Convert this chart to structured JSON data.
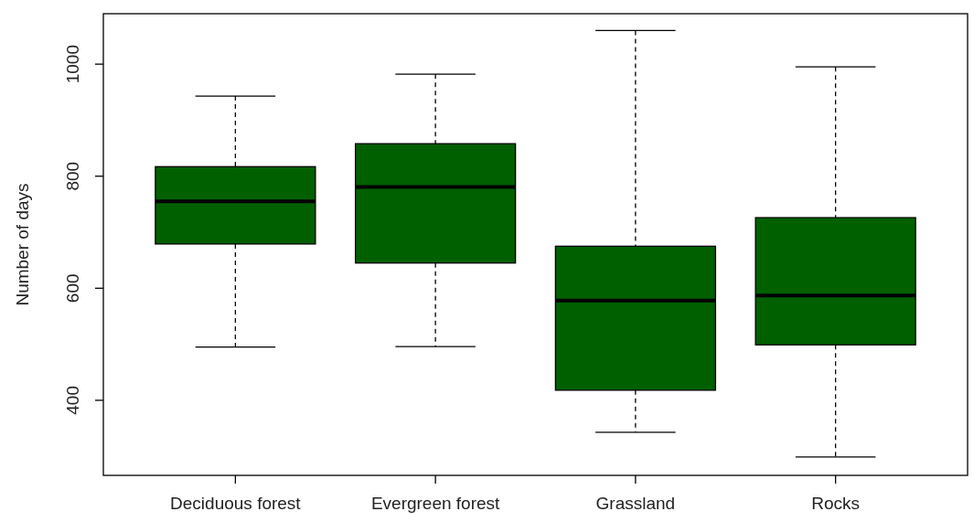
{
  "chart_data": {
    "type": "box",
    "ylabel": "Number of days",
    "categories": [
      "Deciduous forest",
      "Evergreen forest",
      "Grassland",
      "Rocks"
    ],
    "color": "#006000",
    "boxes": [
      {
        "low": 495,
        "q1": 679,
        "median": 755,
        "q3": 817,
        "high": 943
      },
      {
        "low": 496,
        "q1": 645,
        "median": 781,
        "q3": 858,
        "high": 982
      },
      {
        "low": 343,
        "q1": 418,
        "median": 578,
        "q3": 675,
        "high": 1060
      },
      {
        "low": 299,
        "q1": 499,
        "median": 587,
        "q3": 726,
        "high": 995
      }
    ],
    "ylim": [
      266,
      1090
    ],
    "yticks": [
      400,
      600,
      800,
      1000
    ],
    "grid": false
  }
}
